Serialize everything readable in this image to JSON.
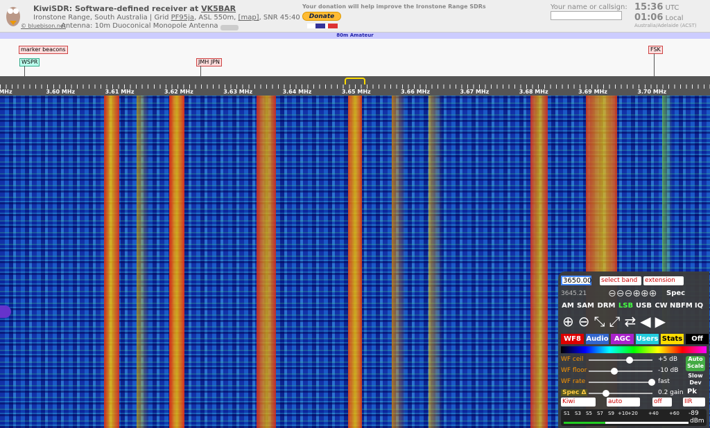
{
  "header": {
    "title_prefix": "KiwiSDR: Software-defined receiver at ",
    "callsign": "VK5BAR",
    "location_prefix": "Ironstone Range, South Australia | Grid ",
    "grid": "PF95ja",
    "asl": ", ASL 550m, ",
    "map": "[map]",
    "snr": ", SNR 45:40 dB",
    "credit": "© bluebison.net",
    "antenna": "Antenna: 10m Duoconical Monopole Antenna"
  },
  "donation": {
    "message": "Your donation will help improve the Ironstone Range SDRs",
    "button": "Donate"
  },
  "callsign_prompt": "Your name or callsign:",
  "clock": {
    "utc_time": "15:36",
    "utc_label": "UTC",
    "local_time": "01:06",
    "local_label": "Local",
    "timezone": "Australia/Adelaide (ACST)"
  },
  "band": "80m Amateur",
  "markers": [
    "marker beacons",
    "WSPR",
    "JMH JPN",
    "FSK"
  ],
  "scale": [
    "MHz",
    "3.60 MHz",
    "3.61 MHz",
    "3.62 MHz",
    "3.63 MHz",
    "3.64 MHz",
    "3.65 MHz",
    "3.66 MHz",
    "3.67 MHz",
    "3.68 MHz",
    "3.69 MHz",
    "3.70 MHz"
  ],
  "panel": {
    "frequency": "3650.00",
    "band_select": "select band",
    "extension": "extension",
    "cursor_freq": "3645.21",
    "spec": "Spec",
    "modes": [
      "AM",
      "SAM",
      "DRM",
      "LSB",
      "USB",
      "CW",
      "NBFM",
      "IQ"
    ],
    "tabs": [
      "WF8",
      "Audio",
      "AGC",
      "Users",
      "Stats",
      "Off"
    ],
    "sliders": [
      {
        "label": "WF ceil",
        "value": "+5 dB"
      },
      {
        "label": "WF floor",
        "value": "-10 dB"
      },
      {
        "label": "WF rate",
        "value": "fast"
      },
      {
        "label": "Spec Δ",
        "value": "0.2 gain"
      }
    ],
    "auto_scale": "Auto Scale",
    "slow_dev": "Slow Dev",
    "pk": "Pk",
    "selects": [
      "Kiwi",
      "auto",
      "off",
      "IIR"
    ],
    "smeter_scale": [
      "S1",
      "S3",
      "S5",
      "S7",
      "S9",
      "+10",
      "+20",
      "+40",
      "+60"
    ],
    "smeter_value": "-89",
    "smeter_unit": "dBm"
  }
}
